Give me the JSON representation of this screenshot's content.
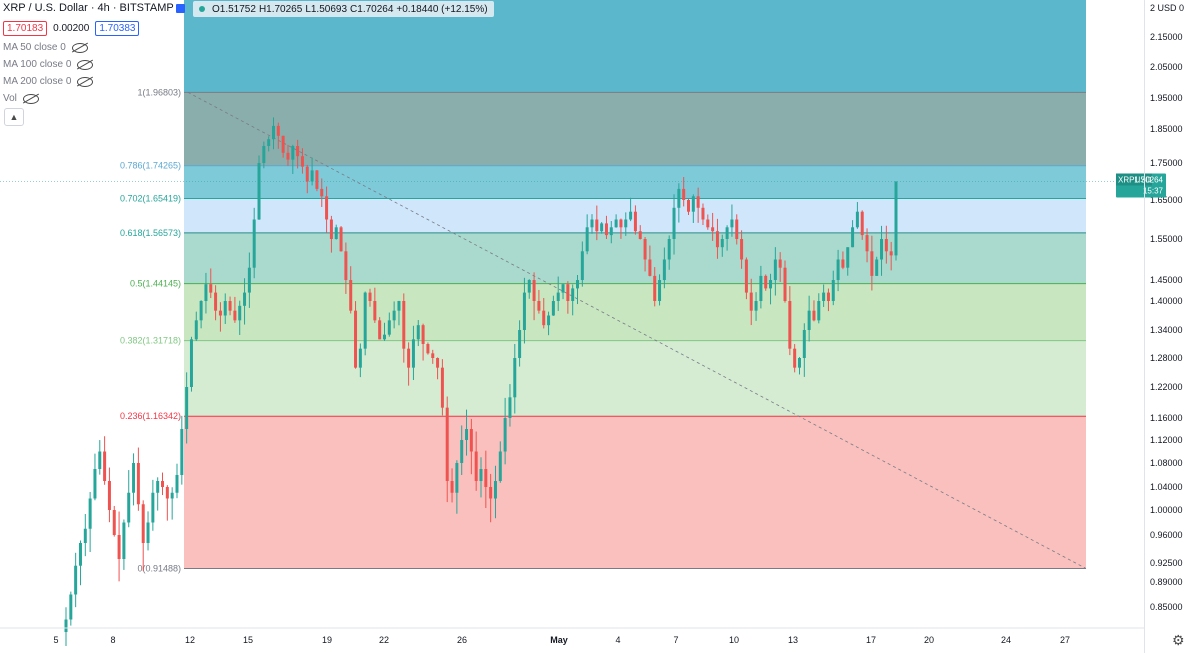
{
  "header": {
    "symbol_title": "XRP / U.S. Dollar · 4h · BITSTAMP",
    "sell_price": "1.70183",
    "spread": "0.00200",
    "buy_price": "1.70383"
  },
  "ohlc": {
    "open": "O1.51752",
    "high": "H1.70265",
    "low": "L1.50693",
    "close": "C1.70264",
    "change": "+0.18440 (+12.15%)"
  },
  "indicators": [
    {
      "label": "MA 50 close 0"
    },
    {
      "label": "MA 100 close 0"
    },
    {
      "label": "MA 200 close 0"
    },
    {
      "label": "Vol"
    }
  ],
  "colors": {
    "up": "#26a69a",
    "down": "#ef5350",
    "fib_top": "#5bb8cc",
    "fib_786": "#8aaeab",
    "fib_702": "#7fcad8",
    "fib_618": "#cfe6fb",
    "fib_05": "#a9dacd",
    "fib_382": "#c8e6c0",
    "fib_236": "#d5ecd3",
    "fib_0": "#f9c0bd"
  },
  "price_tag": {
    "symbol": "XRPUSD",
    "price": "1.70264",
    "countdown": "15:37"
  },
  "chart_data": {
    "type": "candlestick",
    "title": "XRP / U.S. Dollar · 4h · BITSTAMP",
    "y_axis": {
      "unit": "USD",
      "ticks": [
        "2 USD 0",
        "2.15000",
        "2.05000",
        "1.95000",
        "1.85000",
        "1.75000",
        "1.65000",
        "1.55000",
        "1.45000",
        "1.40000",
        "1.34000",
        "1.28000",
        "1.22000",
        "1.16000",
        "1.12000",
        "1.08000",
        "1.04000",
        "1.00000",
        "0.96000",
        "0.92500",
        "0.89000",
        "0.85000"
      ]
    },
    "x_axis": {
      "ticks": [
        "5",
        "8",
        "12",
        "15",
        "19",
        "22",
        "26",
        "May",
        "4",
        "7",
        "10",
        "13",
        "17",
        "20",
        "24",
        "27"
      ]
    },
    "fib_retracement": [
      {
        "level": "1",
        "price": 1.96803,
        "label": "1(1.96803)"
      },
      {
        "level": "0.786",
        "price": 1.74265,
        "label": "0.786(1.74265)"
      },
      {
        "level": "0.702",
        "price": 1.65419,
        "label": "0.702(1.65419)"
      },
      {
        "level": "0.618",
        "price": 1.56573,
        "label": "0.618(1.56573)"
      },
      {
        "level": "0.5",
        "price": 1.44145,
        "label": "0.5(1.44145)"
      },
      {
        "level": "0.382",
        "price": 1.31718,
        "label": "0.382(1.31718)"
      },
      {
        "level": "0.236",
        "price": 1.16342,
        "label": "0.236(1.16342)"
      },
      {
        "level": "0",
        "price": 0.91488,
        "label": "0(0.91488)"
      }
    ],
    "candles_close": [
      0.83,
      0.87,
      0.92,
      0.95,
      0.97,
      1.02,
      1.07,
      1.1,
      1.05,
      1.0,
      0.96,
      0.93,
      0.98,
      1.03,
      1.08,
      1.01,
      0.95,
      0.98,
      1.03,
      1.05,
      1.04,
      1.02,
      1.03,
      1.06,
      1.14,
      1.22,
      1.32,
      1.36,
      1.4,
      1.44,
      1.42,
      1.38,
      1.37,
      1.4,
      1.38,
      1.36,
      1.39,
      1.42,
      1.48,
      1.6,
      1.75,
      1.8,
      1.82,
      1.86,
      1.83,
      1.78,
      1.76,
      1.8,
      1.77,
      1.74,
      1.7,
      1.73,
      1.68,
      1.66,
      1.6,
      1.55,
      1.58,
      1.52,
      1.45,
      1.38,
      1.26,
      1.3,
      1.42,
      1.4,
      1.36,
      1.32,
      1.33,
      1.36,
      1.38,
      1.4,
      1.3,
      1.26,
      1.32,
      1.35,
      1.31,
      1.29,
      1.28,
      1.26,
      1.18,
      1.05,
      1.03,
      1.08,
      1.12,
      1.14,
      1.1,
      1.05,
      1.07,
      1.04,
      1.02,
      1.05,
      1.1,
      1.16,
      1.2,
      1.28,
      1.34,
      1.42,
      1.45,
      1.4,
      1.38,
      1.35,
      1.37,
      1.4,
      1.42,
      1.44,
      1.4,
      1.43,
      1.45,
      1.52,
      1.58,
      1.6,
      1.57,
      1.59,
      1.56,
      1.58,
      1.6,
      1.58,
      1.6,
      1.62,
      1.57,
      1.55,
      1.5,
      1.46,
      1.4,
      1.45,
      1.5,
      1.55,
      1.63,
      1.68,
      1.65,
      1.62,
      1.66,
      1.63,
      1.6,
      1.58,
      1.57,
      1.53,
      1.55,
      1.58,
      1.6,
      1.55,
      1.5,
      1.42,
      1.38,
      1.4,
      1.46,
      1.43,
      1.45,
      1.5,
      1.48,
      1.4,
      1.3,
      1.26,
      1.28,
      1.34,
      1.38,
      1.36,
      1.4,
      1.42,
      1.4,
      1.45,
      1.5,
      1.48,
      1.53,
      1.58,
      1.62,
      1.56,
      1.52,
      1.46,
      1.5,
      1.55,
      1.52,
      1.51,
      1.7
    ]
  }
}
